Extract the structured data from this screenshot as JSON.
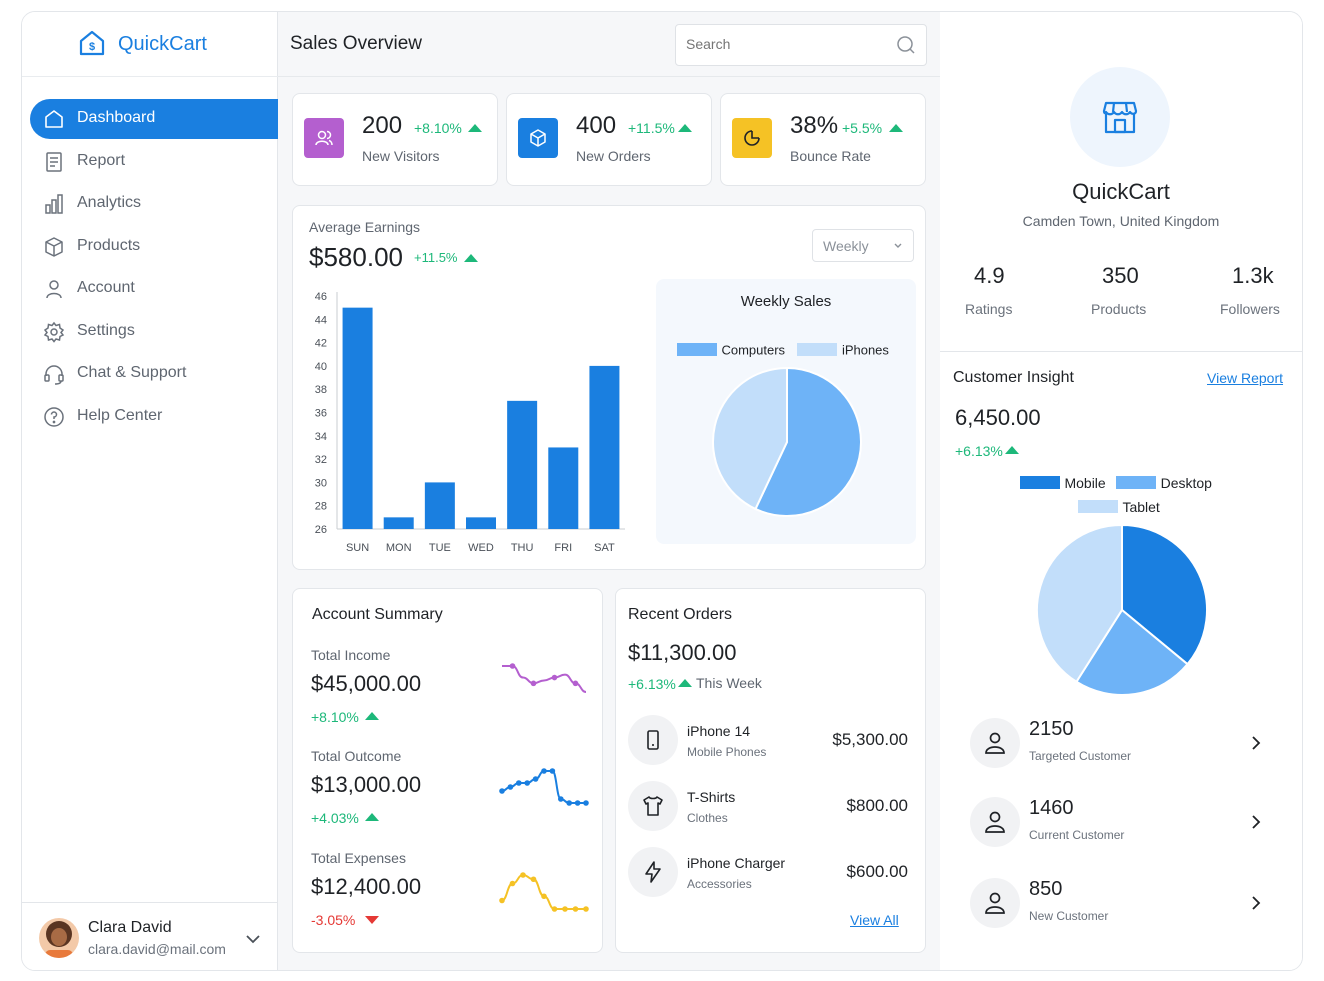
{
  "app": {
    "logo_text": "QuickCart",
    "page_title": "Sales Overview"
  },
  "search": {
    "placeholder": "Search"
  },
  "sidebar": {
    "items": [
      {
        "label": "Dashboard",
        "icon": "home-icon",
        "active": true
      },
      {
        "label": "Report",
        "icon": "report-icon"
      },
      {
        "label": "Analytics",
        "icon": "analytics-icon"
      },
      {
        "label": "Products",
        "icon": "box-icon"
      },
      {
        "label": "Account",
        "icon": "user-icon"
      },
      {
        "label": "Settings",
        "icon": "gear-icon"
      },
      {
        "label": "Chat & Support",
        "icon": "headset-icon"
      },
      {
        "label": "Help Center",
        "icon": "help-icon"
      }
    ]
  },
  "user": {
    "name": "Clara David",
    "email": "clara.david@mail.com"
  },
  "stats": [
    {
      "value": "200",
      "change": "+8.10%",
      "label": "New Visitors",
      "icon": "users-icon",
      "color": "#b45fcf"
    },
    {
      "value": "400",
      "change": "+11.5%",
      "label": "New Orders",
      "icon": "cube-icon",
      "color": "#1a7fe0"
    },
    {
      "value": "38%",
      "change": "+5.5%",
      "label": "Bounce Rate",
      "icon": "pie-icon",
      "color": "#f5c225"
    }
  ],
  "earnings": {
    "label": "Average Earnings",
    "value": "$580.00",
    "change": "+11.5%",
    "period": "Weekly"
  },
  "chart_data": [
    {
      "type": "bar",
      "categories": [
        "SUN",
        "MON",
        "TUE",
        "WED",
        "THU",
        "FRI",
        "SAT"
      ],
      "values": [
        45,
        27,
        30,
        27,
        37,
        33,
        40
      ],
      "ylim": [
        26,
        46
      ],
      "yticks": [
        26,
        28,
        30,
        32,
        34,
        36,
        38,
        40,
        42,
        44,
        46
      ],
      "color": "#1a7fe0"
    },
    {
      "type": "pie",
      "title": "Weekly Sales",
      "labels": [
        "Computers",
        "iPhones"
      ],
      "values": [
        57,
        43
      ],
      "colors": [
        "#6eb3f7",
        "#c2defa"
      ]
    },
    {
      "type": "pie",
      "labels": [
        "Mobile",
        "Desktop",
        "Tablet"
      ],
      "values": [
        36,
        23,
        41
      ],
      "colors": [
        "#1a7fe0",
        "#6eb3f7",
        "#c2defa"
      ]
    },
    {
      "type": "line",
      "series": [
        {
          "name": "Total Income",
          "values": [
            6,
            6,
            4,
            3,
            3.5,
            4,
            4.5,
            3,
            1.5
          ],
          "color": "#b45fcf"
        },
        {
          "name": "Total Outcome",
          "values": [
            4,
            5,
            6,
            6,
            7,
            9,
            9,
            2,
            1,
            1,
            1
          ],
          "color": "#1a7fe0"
        },
        {
          "name": "Total Expenses",
          "values": [
            2,
            6,
            8,
            7,
            3,
            0,
            0,
            0,
            0
          ],
          "color": "#f5c225"
        }
      ]
    }
  ],
  "account_summary": {
    "title": "Account Summary",
    "items": [
      {
        "label": "Total Income",
        "value": "$45,000.00",
        "change": "+8.10%"
      },
      {
        "label": "Total Outcome",
        "value": "$13,000.00",
        "change": "+4.03%"
      },
      {
        "label": "Total Expenses",
        "value": "$12,400.00",
        "change": "-3.05%"
      }
    ]
  },
  "recent_orders": {
    "title": "Recent Orders",
    "total": "$11,300.00",
    "change": "+6.13%",
    "period": "This Week",
    "items": [
      {
        "name": "iPhone 14",
        "category": "Mobile Phones",
        "price": "$5,300.00",
        "icon": "phone-icon"
      },
      {
        "name": "T-Shirts",
        "category": "Clothes",
        "price": "$800.00",
        "icon": "shirt-icon"
      },
      {
        "name": "iPhone Charger",
        "category": "Accessories",
        "price": "$600.00",
        "icon": "bolt-icon"
      }
    ],
    "view_all": "View All"
  },
  "store": {
    "name": "QuickCart",
    "location": "Camden Town, United Kingdom",
    "stats": [
      {
        "value": "4.9",
        "label": "Ratings"
      },
      {
        "value": "350",
        "label": "Products"
      },
      {
        "value": "1.3k",
        "label": "Followers"
      }
    ]
  },
  "insight": {
    "title": "Customer Insight",
    "link": "View Report",
    "value": "6,450.00",
    "change": "+6.13%",
    "customers": [
      {
        "value": "2150",
        "label": "Targeted Customer"
      },
      {
        "value": "1460",
        "label": "Current Customer"
      },
      {
        "value": "850",
        "label": "New Customer"
      }
    ]
  }
}
